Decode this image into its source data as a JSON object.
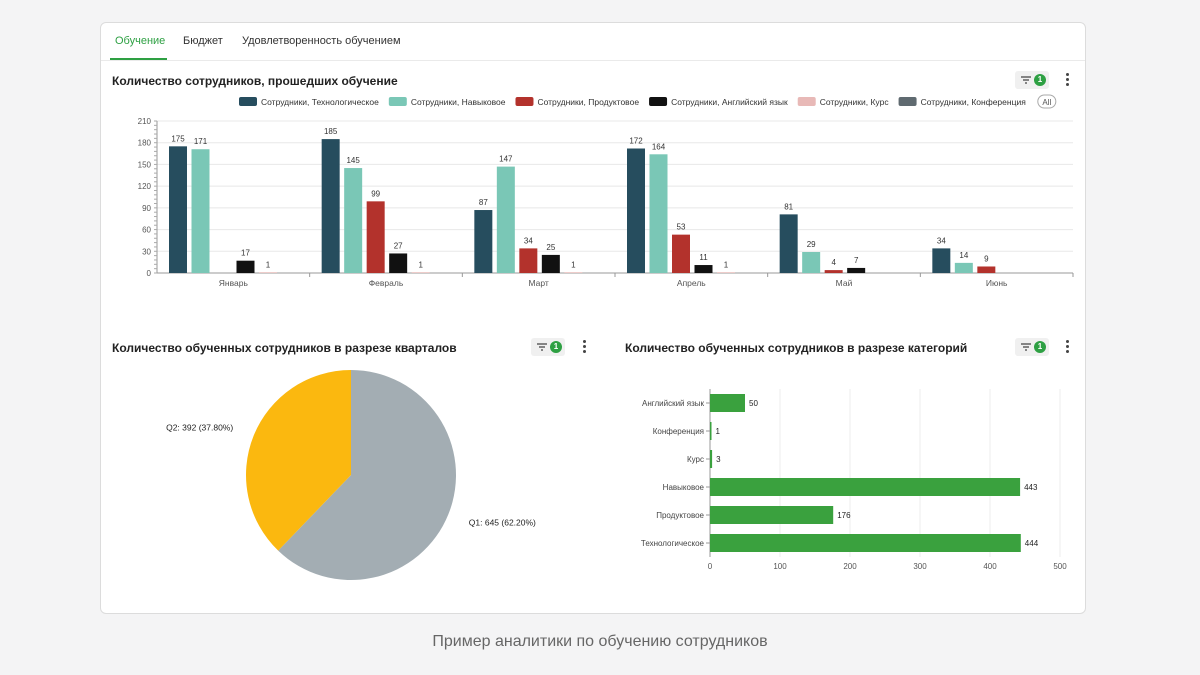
{
  "tabs": [
    {
      "label": "Обучение",
      "active": true
    },
    {
      "label": "Бюджет",
      "active": false
    },
    {
      "label": "Удовлетворенность обучением",
      "active": false
    }
  ],
  "filter_badge": "1",
  "bar_panel": {
    "title": "Количество сотрудников, прошедших обучение",
    "legend_all": "All"
  },
  "pie_panel": {
    "title": "Количество обученных сотрудников в разрезе кварталов"
  },
  "hbar_panel": {
    "title": "Количество обученных сотрудников в разрезе категорий"
  },
  "caption": "Пример аналитики по обучению сотрудников",
  "colors": {
    "accent": "#2ea043"
  },
  "chart_data": [
    {
      "type": "bar",
      "categories": [
        "Январь",
        "Февраль",
        "Март",
        "Апрель",
        "Май",
        "Июнь"
      ],
      "ylim": [
        0,
        210
      ],
      "yticks": [
        0,
        30,
        60,
        90,
        120,
        150,
        180,
        210
      ],
      "grid": true,
      "legend_position": "top-right",
      "series": [
        {
          "name": "Сотрудники, Технологическое",
          "color": "#264d5e",
          "values": [
            175,
            185,
            87,
            172,
            81,
            34
          ]
        },
        {
          "name": "Сотрудники, Навыковое",
          "color": "#7ac7b6",
          "values": [
            171,
            145,
            147,
            164,
            29,
            14
          ]
        },
        {
          "name": "Сотрудники, Продуктовое",
          "color": "#b3322c",
          "values": [
            null,
            99,
            34,
            53,
            4,
            9
          ]
        },
        {
          "name": "Сотрудники, Английский язык",
          "color": "#111111",
          "values": [
            17,
            27,
            25,
            11,
            7,
            null
          ]
        },
        {
          "name": "Сотрудники, Курс",
          "color": "#e8b9b7",
          "values": [
            1,
            1,
            1,
            1,
            null,
            null
          ]
        },
        {
          "name": "Сотрудники, Конференция",
          "color": "#5f6a70",
          "values": [
            null,
            null,
            null,
            null,
            null,
            null
          ]
        }
      ]
    },
    {
      "type": "pie",
      "slices": [
        {
          "label": "Q1: 645 (62.20%)",
          "name": "Q1",
          "value": 645,
          "percent": 62.2,
          "color": "#a3adb3"
        },
        {
          "label": "Q2: 392 (37.80%)",
          "name": "Q2",
          "value": 392,
          "percent": 37.8,
          "color": "#fbb80f"
        }
      ]
    },
    {
      "type": "bar",
      "orientation": "horizontal",
      "categories": [
        "Английский язык",
        "Конференция",
        "Курс",
        "Навыковое",
        "Продуктовое",
        "Технологическое"
      ],
      "values": [
        50,
        1,
        3,
        443,
        176,
        444
      ],
      "xlim": [
        0,
        500
      ],
      "xticks": [
        0,
        100,
        200,
        300,
        400,
        500
      ],
      "color": "#3aa13e",
      "grid": true
    }
  ]
}
